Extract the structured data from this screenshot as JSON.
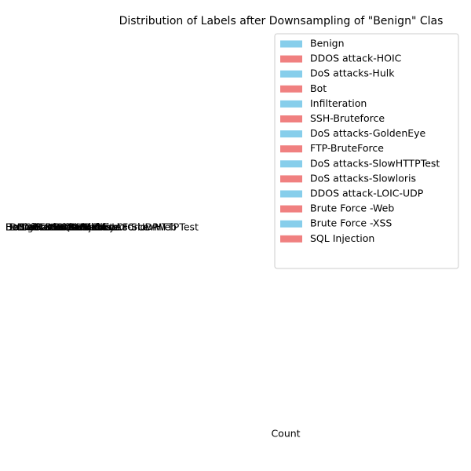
{
  "chart_data": {
    "type": "bar",
    "title": "Distribution of Labels after Downsampling of \"Benign\" Clas",
    "xlabel": "Count",
    "categories": [
      "Benign",
      "DDOS attack-HOIC",
      "DoS attacks-Hulk",
      "Bot",
      "Infilteration",
      "SSH-Bruteforce",
      "DoS attacks-GoldenEye",
      "FTP-BruteForce",
      "DoS attacks-SlowHTTPTest",
      "DoS attacks-Slowloris",
      "DDOS attack-LOIC-UDP",
      "Brute Force -Web",
      "Brute Force -XSS",
      "SQL Injection"
    ],
    "colors": [
      "#87ceeb",
      "#f08080"
    ],
    "legend": "upper right"
  }
}
